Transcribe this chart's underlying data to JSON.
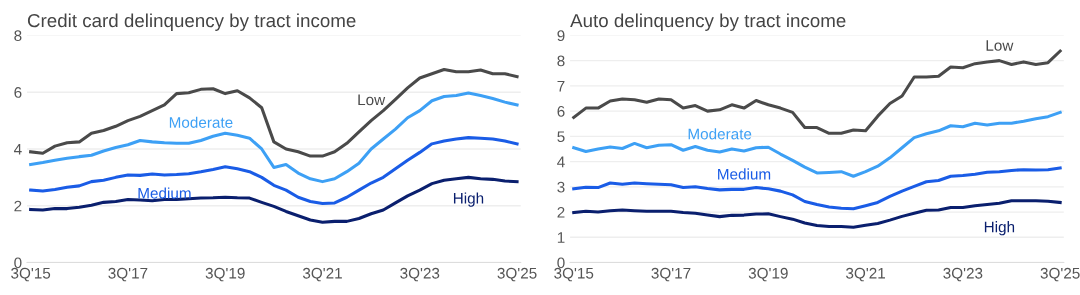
{
  "chart_data": [
    {
      "type": "line",
      "title": "Credit card delinquency by tract income",
      "categories": [
        "3Q'15",
        null,
        null,
        null,
        null,
        null,
        null,
        null,
        "3Q'17",
        null,
        null,
        null,
        null,
        null,
        null,
        null,
        "3Q'19",
        null,
        null,
        null,
        null,
        null,
        null,
        null,
        "3Q'21",
        null,
        null,
        null,
        null,
        null,
        null,
        null,
        "3Q'23",
        null,
        null,
        null,
        null,
        null,
        null,
        null,
        "3Q'25"
      ],
      "series": [
        {
          "name": "Low",
          "color": "#4a4a4a",
          "values": [
            3.9,
            3.85,
            4.1,
            4.22,
            4.25,
            4.55,
            4.65,
            4.8,
            5.0,
            5.15,
            5.35,
            5.55,
            5.95,
            5.98,
            6.1,
            6.12,
            5.95,
            6.05,
            5.8,
            5.45,
            4.25,
            4.0,
            3.9,
            3.75,
            3.75,
            3.9,
            4.2,
            4.6,
            5.0,
            5.35,
            5.75,
            6.15,
            6.5,
            6.65,
            6.8,
            6.72,
            6.72,
            6.78,
            6.65,
            6.65,
            6.55
          ]
        },
        {
          "name": "Moderate",
          "color": "#3da0f5",
          "values": [
            3.45,
            3.52,
            3.6,
            3.67,
            3.73,
            3.78,
            3.93,
            4.05,
            4.15,
            4.3,
            4.25,
            4.22,
            4.2,
            4.2,
            4.3,
            4.45,
            4.55,
            4.48,
            4.38,
            4.0,
            3.35,
            3.45,
            3.15,
            2.95,
            2.85,
            2.95,
            3.2,
            3.5,
            4.0,
            4.35,
            4.7,
            5.1,
            5.35,
            5.7,
            5.85,
            5.88,
            5.97,
            5.88,
            5.78,
            5.65,
            5.55
          ]
        },
        {
          "name": "Medium",
          "color": "#1a5ce6",
          "values": [
            2.55,
            2.52,
            2.57,
            2.65,
            2.7,
            2.85,
            2.9,
            3.0,
            3.08,
            3.07,
            3.12,
            3.08,
            3.1,
            3.13,
            3.2,
            3.28,
            3.37,
            3.3,
            3.2,
            3.0,
            2.72,
            2.55,
            2.3,
            2.15,
            2.08,
            2.1,
            2.3,
            2.55,
            2.8,
            3.0,
            3.3,
            3.6,
            3.88,
            4.18,
            4.28,
            4.35,
            4.4,
            4.38,
            4.35,
            4.28,
            4.18
          ]
        },
        {
          "name": "High",
          "color": "#0a1f6e",
          "values": [
            1.87,
            1.85,
            1.9,
            1.9,
            1.95,
            2.02,
            2.12,
            2.15,
            2.22,
            2.2,
            2.18,
            2.22,
            2.22,
            2.25,
            2.27,
            2.28,
            2.3,
            2.28,
            2.27,
            2.12,
            1.98,
            1.8,
            1.65,
            1.5,
            1.42,
            1.45,
            1.45,
            1.55,
            1.72,
            1.85,
            2.1,
            2.35,
            2.55,
            2.78,
            2.9,
            2.95,
            3.0,
            2.95,
            2.93,
            2.87,
            2.85
          ]
        }
      ],
      "ylim": [
        0,
        8
      ],
      "yticks": [
        0,
        2,
        4,
        6,
        8
      ],
      "grid": "y",
      "legend": false
    },
    {
      "type": "line",
      "title": "Auto delinquency by tract income",
      "categories": [
        "3Q'15",
        null,
        null,
        null,
        null,
        null,
        null,
        null,
        "3Q'17",
        null,
        null,
        null,
        null,
        null,
        null,
        null,
        "3Q'19",
        null,
        null,
        null,
        null,
        null,
        null,
        null,
        "3Q'21",
        null,
        null,
        null,
        null,
        null,
        null,
        null,
        "3Q'23",
        null,
        null,
        null,
        null,
        null,
        null,
        null,
        "3Q'25"
      ],
      "series": [
        {
          "name": "Low",
          "color": "#4a4a4a",
          "values": [
            5.75,
            6.12,
            6.12,
            6.4,
            6.48,
            6.45,
            6.35,
            6.48,
            6.45,
            6.12,
            6.22,
            6.0,
            6.05,
            6.25,
            6.12,
            6.42,
            6.25,
            6.12,
            5.95,
            5.35,
            5.35,
            5.12,
            5.12,
            5.25,
            5.22,
            5.8,
            6.3,
            6.6,
            7.35,
            7.35,
            7.38,
            7.75,
            7.72,
            7.88,
            7.95,
            8.0,
            7.85,
            7.95,
            7.85,
            7.92,
            8.38
          ]
        },
        {
          "name": "Moderate",
          "color": "#3da0f5",
          "values": [
            4.55,
            4.4,
            4.5,
            4.58,
            4.52,
            4.72,
            4.55,
            4.65,
            4.67,
            4.45,
            4.6,
            4.45,
            4.38,
            4.5,
            4.42,
            4.55,
            4.57,
            4.3,
            4.05,
            3.78,
            3.55,
            3.57,
            3.6,
            3.42,
            3.6,
            3.82,
            4.15,
            4.55,
            4.95,
            5.1,
            5.22,
            5.42,
            5.38,
            5.52,
            5.45,
            5.52,
            5.52,
            5.6,
            5.7,
            5.78,
            5.95
          ]
        },
        {
          "name": "Medium",
          "color": "#1a5ce6",
          "values": [
            2.92,
            2.98,
            2.97,
            3.15,
            3.1,
            3.15,
            3.12,
            3.1,
            3.08,
            2.97,
            3.0,
            2.93,
            2.88,
            2.9,
            2.9,
            2.97,
            2.92,
            2.83,
            2.68,
            2.42,
            2.3,
            2.2,
            2.15,
            2.13,
            2.25,
            2.38,
            2.62,
            2.83,
            3.02,
            3.2,
            3.25,
            3.42,
            3.45,
            3.5,
            3.58,
            3.6,
            3.65,
            3.68,
            3.67,
            3.68,
            3.75
          ]
        },
        {
          "name": "High",
          "color": "#0a1f6e",
          "values": [
            1.98,
            2.03,
            2.0,
            2.05,
            2.08,
            2.05,
            2.03,
            2.03,
            2.03,
            1.98,
            1.95,
            1.88,
            1.82,
            1.87,
            1.88,
            1.92,
            1.93,
            1.82,
            1.72,
            1.57,
            1.47,
            1.43,
            1.43,
            1.4,
            1.48,
            1.55,
            1.68,
            1.83,
            1.95,
            2.07,
            2.08,
            2.18,
            2.18,
            2.25,
            2.3,
            2.35,
            2.45,
            2.45,
            2.45,
            2.43,
            2.38
          ]
        }
      ],
      "ylim": [
        0,
        9
      ],
      "yticks": [
        0,
        1,
        2,
        3,
        4,
        5,
        6,
        7,
        8,
        9
      ],
      "grid": "y",
      "legend": false
    }
  ]
}
